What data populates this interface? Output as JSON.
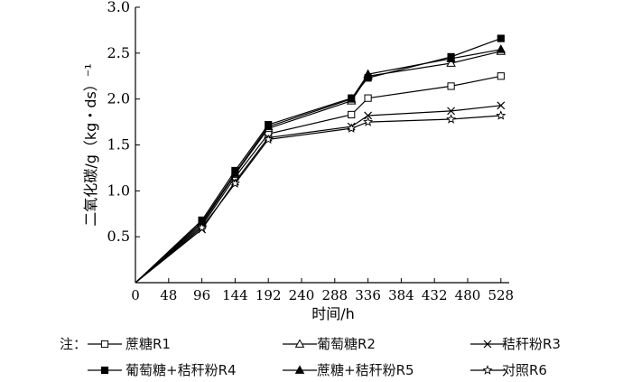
{
  "chart_data": {
    "type": "line",
    "xlabel": "时间/h",
    "ylabel": "二氧化碳/g（kg・ds）⁻¹",
    "xlim": [
      0,
      540
    ],
    "ylim": [
      0,
      3.0
    ],
    "xticks": [
      0,
      48,
      96,
      144,
      192,
      240,
      288,
      336,
      384,
      432,
      480,
      528
    ],
    "yticks": [
      0.5,
      1.0,
      1.5,
      2.0,
      2.5,
      3.0
    ],
    "yticklabels": [
      "0.5",
      "1.0",
      "1.5",
      "2.0",
      "2.5",
      "3.0"
    ],
    "x": [
      0,
      96,
      144,
      192,
      312,
      336,
      456,
      528
    ],
    "legend_prefix": "注：",
    "series": [
      {
        "name": "蔗糖R1",
        "marker": "square-open",
        "values": [
          0,
          0.62,
          1.15,
          1.62,
          1.83,
          2.01,
          2.14,
          2.25
        ]
      },
      {
        "name": "葡萄糖R2",
        "marker": "triangle-open",
        "values": [
          0,
          0.64,
          1.18,
          1.68,
          1.98,
          2.25,
          2.39,
          2.52
        ]
      },
      {
        "name": "秸秆粉R3",
        "marker": "cross",
        "values": [
          0,
          0.58,
          1.1,
          1.58,
          1.7,
          1.82,
          1.87,
          1.93
        ]
      },
      {
        "name": "葡萄糖+秸秆粉R4",
        "marker": "square-filled",
        "values": [
          0,
          0.68,
          1.22,
          1.72,
          2.01,
          2.23,
          2.46,
          2.66
        ]
      },
      {
        "name": "蔗糖+秸秆粉R5",
        "marker": "triangle-filled",
        "values": [
          0,
          0.66,
          1.19,
          1.7,
          2.0,
          2.27,
          2.44,
          2.54
        ]
      },
      {
        "name": "对照R6",
        "marker": "star",
        "values": [
          0,
          0.6,
          1.08,
          1.56,
          1.68,
          1.75,
          1.78,
          1.82
        ]
      }
    ]
  }
}
